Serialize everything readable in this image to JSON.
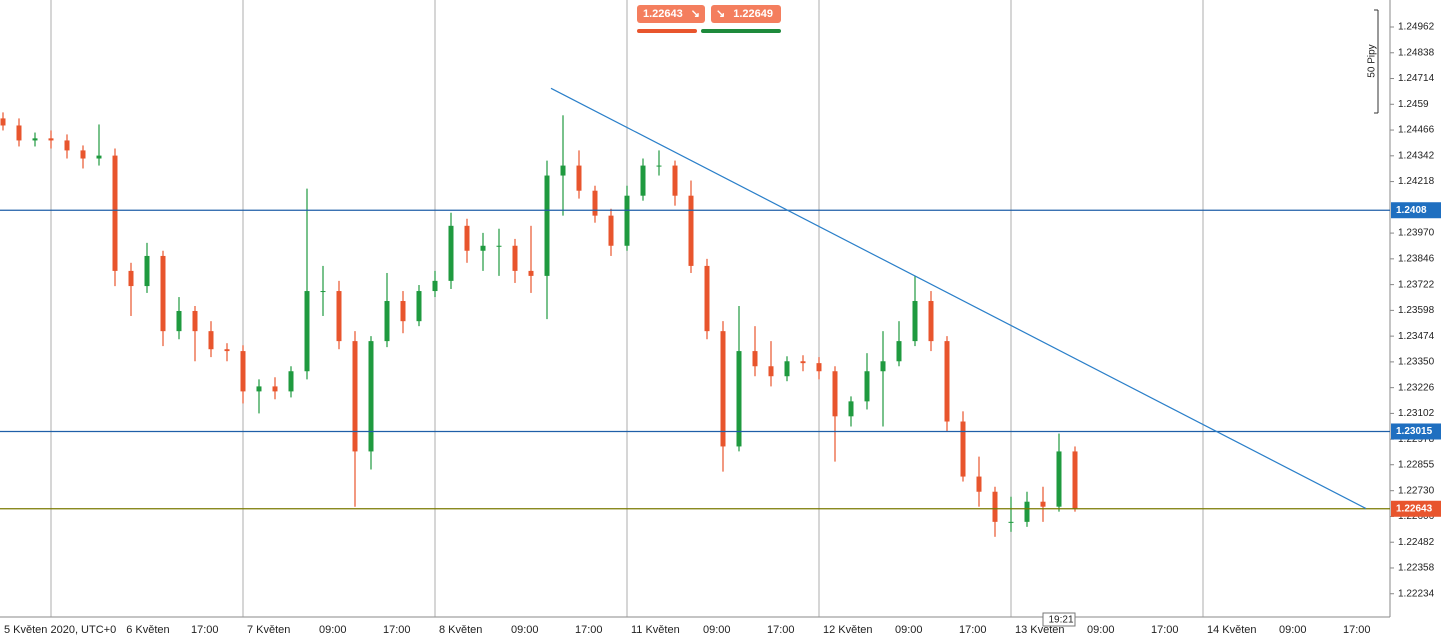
{
  "chart_data": {
    "type": "candlestick",
    "x": [
      -30,
      -28,
      -26,
      -24,
      -22,
      -20,
      -18,
      -16,
      -14,
      -12,
      -10,
      -8,
      -6,
      -4,
      -2,
      0,
      2,
      4,
      6,
      8,
      10,
      12,
      14,
      16,
      18,
      20,
      22,
      24,
      26,
      28,
      30,
      32,
      34,
      36,
      38,
      40,
      42,
      44,
      46,
      48,
      50,
      52,
      54,
      56,
      58,
      60,
      62,
      64,
      66,
      68,
      70,
      72,
      74,
      76,
      78,
      80,
      82,
      84,
      86,
      88,
      90,
      92,
      94,
      96,
      98,
      100,
      102,
      104
    ],
    "open": [
      1.24522,
      1.24488,
      1.24416,
      1.24426,
      1.24416,
      1.24368,
      1.24329,
      1.24343,
      1.23788,
      1.23715,
      1.2386,
      1.23498,
      1.23595,
      1.23498,
      1.23411,
      1.23402,
      1.23208,
      1.23232,
      1.23208,
      1.23305,
      1.23691,
      1.23691,
      1.2345,
      1.22919,
      1.2345,
      1.23643,
      1.23546,
      1.23691,
      1.2374,
      1.24005,
      1.23885,
      1.23909,
      1.23909,
      1.23788,
      1.23764,
      1.24247,
      1.24295,
      1.24174,
      1.24054,
      1.23909,
      1.2415,
      1.24295,
      1.24295,
      1.2415,
      1.23812,
      1.23498,
      1.22943,
      1.23402,
      1.23329,
      1.23281,
      1.23353,
      1.23344,
      1.23305,
      1.23088,
      1.2316,
      1.23305,
      1.23353,
      1.2345,
      1.23643,
      1.2345,
      1.23063,
      1.22798,
      1.22725,
      1.2258,
      1.2258,
      1.22677,
      1.22653,
      1.22919
    ],
    "high": [
      1.24551,
      1.24522,
      1.24454,
      1.24464,
      1.24445,
      1.24392,
      1.24493,
      1.24377,
      1.23827,
      1.23923,
      1.23885,
      1.23662,
      1.23619,
      1.23546,
      1.2344,
      1.2343,
      1.23266,
      1.23276,
      1.23329,
      1.24184,
      1.23812,
      1.2374,
      1.23498,
      1.23474,
      1.23778,
      1.23691,
      1.2372,
      1.23788,
      1.24068,
      1.24039,
      1.23971,
      1.23991,
      1.23942,
      1.24005,
      1.24319,
      1.24537,
      1.24368,
      1.24198,
      1.24087,
      1.24198,
      1.24329,
      1.24368,
      1.24319,
      1.24223,
      1.23846,
      1.23546,
      1.23619,
      1.23522,
      1.2345,
      1.23377,
      1.23382,
      1.23373,
      1.23329,
      1.23184,
      1.23392,
      1.23498,
      1.23546,
      1.23764,
      1.23691,
      1.23474,
      1.23112,
      1.22894,
      1.22749,
      1.22701,
      1.22725,
      1.22749,
      1.23005,
      1.22943
    ],
    "low": [
      1.24464,
      1.24387,
      1.24387,
      1.24377,
      1.24329,
      1.24281,
      1.24295,
      1.23715,
      1.23571,
      1.23682,
      1.23426,
      1.23459,
      1.23353,
      1.23373,
      1.23353,
      1.2315,
      1.23102,
      1.2317,
      1.23179,
      1.23266,
      1.23571,
      1.23411,
      1.22653,
      1.22832,
      1.23421,
      1.23488,
      1.23522,
      1.23662,
      1.23701,
      1.23827,
      1.23788,
      1.23764,
      1.2373,
      1.23682,
      1.23556,
      1.24054,
      1.24136,
      1.2402,
      1.2386,
      1.23885,
      1.24126,
      1.24247,
      1.24102,
      1.23778,
      1.23459,
      1.22822,
      1.22919,
      1.23281,
      1.23232,
      1.23257,
      1.23305,
      1.23266,
      1.2287,
      1.23039,
      1.23121,
      1.23039,
      1.23329,
      1.23426,
      1.23402,
      1.23015,
      1.22774,
      1.22653,
      1.22508,
      1.22532,
      1.22556,
      1.2258,
      1.22629,
      1.22629
    ],
    "close": [
      1.24488,
      1.24416,
      1.24426,
      1.24416,
      1.24368,
      1.24329,
      1.24343,
      1.23788,
      1.23715,
      1.2386,
      1.23498,
      1.23595,
      1.23498,
      1.23411,
      1.23402,
      1.23208,
      1.23232,
      1.23208,
      1.23305,
      1.23691,
      1.23691,
      1.2345,
      1.22919,
      1.2345,
      1.23643,
      1.23546,
      1.23691,
      1.2374,
      1.24005,
      1.23885,
      1.23909,
      1.23909,
      1.23788,
      1.23764,
      1.24247,
      1.24295,
      1.24174,
      1.24054,
      1.23909,
      1.2415,
      1.24295,
      1.24295,
      1.2415,
      1.23812,
      1.23498,
      1.22943,
      1.23402,
      1.23329,
      1.23281,
      1.23353,
      1.23344,
      1.23305,
      1.23088,
      1.2316,
      1.23305,
      1.23353,
      1.2345,
      1.23643,
      1.2345,
      1.23063,
      1.22798,
      1.22725,
      1.2258,
      1.2258,
      1.22677,
      1.22653,
      1.22919,
      1.22643
    ],
    "up_color": "#1f9a3f",
    "down_color": "#e8552d",
    "xlim": [
      -30.375,
      143.375
    ],
    "ylim": [
      1.22122,
      1.25092
    ],
    "xticks": [
      {
        "value": -30.375,
        "label": "5 Květen 2020, UTC+0"
      },
      {
        "value": -24,
        "label": "6 Květen"
      },
      {
        "value": -7,
        "label": "17:00"
      },
      {
        "value": 0,
        "label": "7 Květen"
      },
      {
        "value": 9,
        "label": "09:00"
      },
      {
        "value": 17,
        "label": "17:00"
      },
      {
        "value": 24,
        "label": "8 Květen"
      },
      {
        "value": 33,
        "label": "09:00"
      },
      {
        "value": 41,
        "label": "17:00"
      },
      {
        "value": 48,
        "label": "11 Květen"
      },
      {
        "value": 57,
        "label": "09:00"
      },
      {
        "value": 65,
        "label": "17:00"
      },
      {
        "value": 72,
        "label": "12 Květen"
      },
      {
        "value": 81,
        "label": "09:00"
      },
      {
        "value": 89,
        "label": "17:00"
      },
      {
        "value": 96,
        "label": "13 Květen"
      },
      {
        "value": 105,
        "label": "09:00"
      },
      {
        "value": 113,
        "label": "17:00"
      },
      {
        "value": 120,
        "label": "14 Květen"
      },
      {
        "value": 129,
        "label": "09:00"
      },
      {
        "value": 137,
        "label": "17:00"
      }
    ],
    "yticks": [
      1.24962,
      1.24838,
      1.24714,
      1.2459,
      1.24466,
      1.24342,
      1.24218,
      {
        "value": 1.2397,
        "label": "1.23970"
      },
      1.23846,
      1.23722,
      1.23598,
      1.23474,
      {
        "value": 1.2335,
        "label": "1.23350"
      },
      1.23226,
      1.23102,
      1.22978,
      1.22855,
      {
        "value": 1.2273,
        "label": "1.22730"
      },
      1.22606,
      1.22482,
      1.22358,
      1.22234
    ],
    "grid": "x",
    "hlines": [
      {
        "value": 1.2408,
        "color": "#1f5fa8",
        "label_color": "#1f6fc0"
      },
      {
        "value": 1.23015,
        "color": "#1f5fa8",
        "label_color": "#1f6fc0"
      },
      {
        "value": 1.22643,
        "color": "#7a7a00",
        "label_color": "#e8552d"
      }
    ],
    "trendline": {
      "x": [
        38.5,
        140.375
      ],
      "y": [
        1.24667,
        1.22644
      ],
      "color": "#2a7fc9"
    }
  },
  "toolbar": {
    "sell": "1.22643",
    "buy": "1.22649"
  },
  "scale_note": "50 Pipy",
  "cursor_time": "19:21"
}
